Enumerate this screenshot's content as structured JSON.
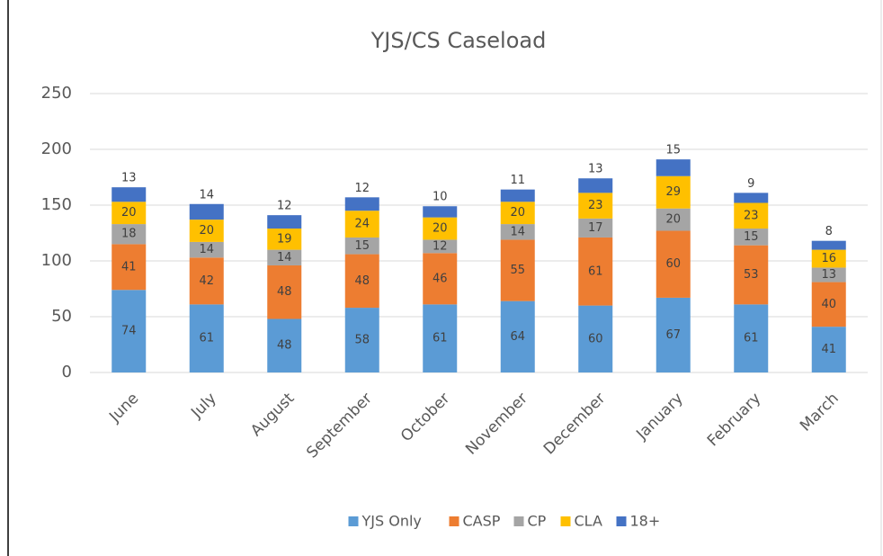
{
  "chart_data": {
    "type": "stacked_bar",
    "title": "YJS/CS Caseload",
    "categories": [
      "June",
      "July",
      "August",
      "September",
      "October",
      "November",
      "December",
      "January",
      "February",
      "March"
    ],
    "series": [
      {
        "name": "YJS Only",
        "color": "#5b9bd5",
        "values": [
          74,
          61,
          48,
          58,
          61,
          64,
          60,
          67,
          61,
          41
        ]
      },
      {
        "name": "CASP",
        "color": "#ed7d31",
        "values": [
          41,
          42,
          48,
          48,
          46,
          55,
          61,
          60,
          53,
          40
        ]
      },
      {
        "name": "CP",
        "color": "#a5a5a5",
        "values": [
          18,
          14,
          14,
          15,
          12,
          14,
          17,
          20,
          15,
          13
        ]
      },
      {
        "name": "CLA",
        "color": "#ffc000",
        "values": [
          20,
          20,
          19,
          24,
          20,
          20,
          23,
          29,
          23,
          16
        ]
      },
      {
        "name": "18+",
        "color": "#4472c4",
        "values": [
          13,
          14,
          12,
          12,
          10,
          11,
          13,
          15,
          9,
          8
        ]
      }
    ],
    "ylim": [
      0,
      250
    ],
    "yticks": [
      0,
      50,
      100,
      150,
      200,
      250
    ],
    "grid": true,
    "legend": "bottom"
  }
}
